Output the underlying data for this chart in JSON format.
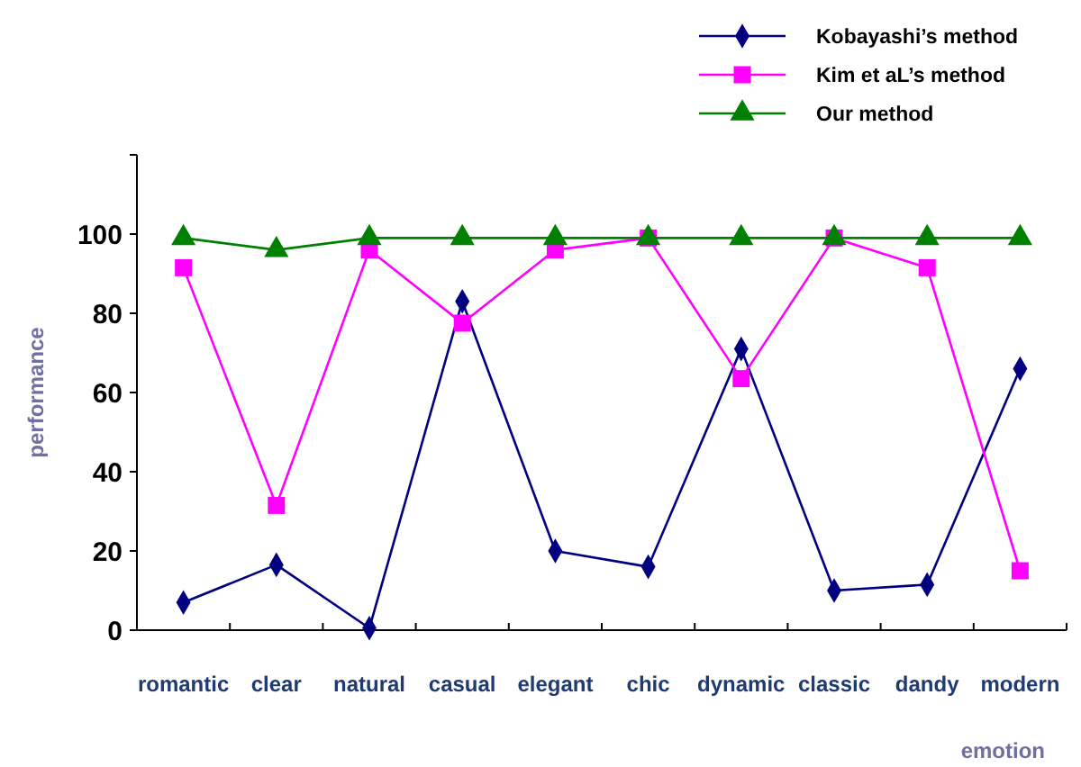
{
  "chart_data": {
    "type": "line",
    "xlabel": "emotion",
    "ylabel": "performance",
    "categories": [
      "romantic",
      "clear",
      "natural",
      "casual",
      "elegant",
      "chic",
      "dynamic",
      "classic",
      "dandy",
      "modern"
    ],
    "series": [
      {
        "name": "Kobayashi’s method",
        "color": "#000080",
        "marker": "diamond",
        "values": [
          7,
          16.5,
          0.5,
          83,
          20,
          16,
          71,
          10,
          11.5,
          66
        ]
      },
      {
        "name": "Kim et aL’s method",
        "color": "#ff00ff",
        "marker": "square",
        "values": [
          91.5,
          31.5,
          96,
          77.5,
          96,
          99,
          63.5,
          99,
          91.5,
          15
        ]
      },
      {
        "name": "Our method",
        "color": "#008000",
        "marker": "triangle",
        "values": [
          99,
          96,
          99,
          99,
          99,
          99,
          99,
          99,
          99,
          99
        ]
      }
    ],
    "ylim": [
      0,
      120
    ],
    "yticks": [
      0,
      20,
      40,
      60,
      80,
      100,
      {
        "value": 120,
        "label": null
      }
    ],
    "grid": false,
    "legend": "top right",
    "line_style": "solid"
  }
}
